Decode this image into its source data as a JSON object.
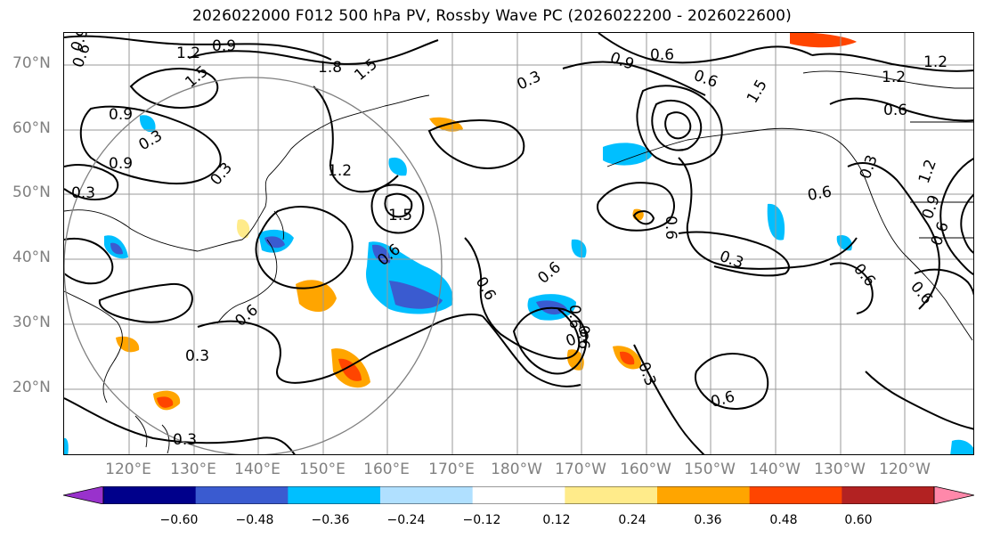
{
  "title": "2026022000 F012 500 hPa PV, Rossby Wave PC (2026022200 - 2026022600)",
  "lat_labels": [
    "70°N",
    "60°N",
    "50°N",
    "40°N",
    "30°N",
    "20°N"
  ],
  "lon_labels": [
    "120°E",
    "130°E",
    "140°E",
    "150°E",
    "160°E",
    "170°E",
    "180°W",
    "170°W",
    "160°W",
    "150°W",
    "140°W",
    "130°W",
    "120°W"
  ],
  "colorbar": {
    "ticks": [
      "−0.60",
      "−0.48",
      "−0.36",
      "−0.24",
      "−0.12",
      "0.12",
      "0.24",
      "0.36",
      "0.48",
      "0.60"
    ],
    "colors": [
      "#9932cc",
      "#00008b",
      "#3a5bd0",
      "#00bfff",
      "#b0e0ff",
      "#ffffff",
      "#ffeb8a",
      "#ffa500",
      "#ff4500",
      "#b22222",
      "#ff88aa"
    ]
  },
  "contour_labels": [
    "0.9",
    "1.2",
    "0.9",
    "0.6",
    "1.5",
    "1.8",
    "1.5",
    "0.9",
    "0.6",
    "0.3",
    "0.9",
    "0.3",
    "0.9",
    "0.3",
    "0.3",
    "1.2",
    "1.5",
    "0.6",
    "0.6",
    "0.6",
    "0.6",
    "0.3",
    "0.6",
    "0.6",
    "0.9",
    "0.6",
    "0.3",
    "0.6",
    "0.3",
    "0.3",
    "0.6",
    "1.5",
    "0.6",
    "1.2",
    "0.6",
    "0.3",
    "1.2",
    "0.9",
    "0.6",
    "0.6",
    "0.6",
    "1.2"
  ]
}
